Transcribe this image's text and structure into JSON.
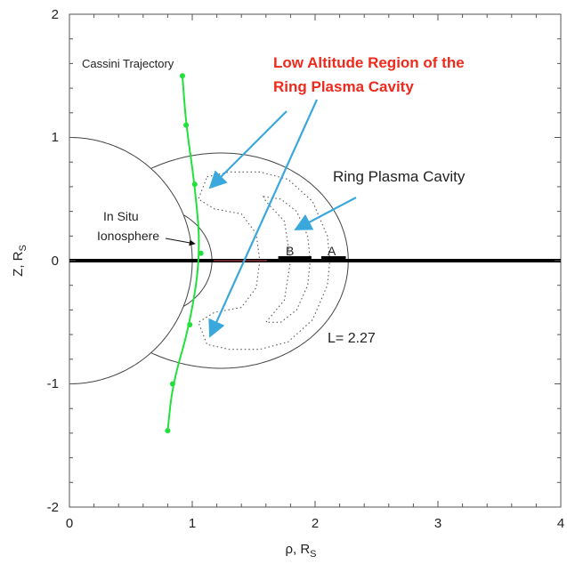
{
  "chart_data": {
    "type": "diagram",
    "xlabel_main": "ρ, R",
    "xlabel_sub": "S",
    "ylabel_main": "Z, R",
    "ylabel_sub": "S",
    "xlim": [
      0,
      4
    ],
    "ylim": [
      -2,
      2
    ],
    "x_ticks": [
      "0",
      "1",
      "2",
      "3",
      "4"
    ],
    "y_ticks": [
      "2",
      "1",
      "0",
      "-1",
      "-2"
    ],
    "grid": false,
    "labels": {
      "trajectory": "Cassini Trajectory",
      "low_alt_line1": "Low Altitude Region of the",
      "low_alt_line2": "Ring Plasma Cavity",
      "cavity": "Ring Plasma Cavity",
      "ionosphere_line1": "In Situ",
      "ionosphere_line2": "Ionosphere",
      "ring_b": "B",
      "ring_a": "A",
      "l_shell": "L= 2.27"
    },
    "planet_radius": 1,
    "l_shell_value": 2.27,
    "rings": [
      {
        "name": "B",
        "from": 1.7,
        "to": 1.97
      },
      {
        "name": "A",
        "from": 2.05,
        "to": 2.25
      }
    ],
    "trajectory_points": [
      {
        "x": 0.92,
        "y": 1.5
      },
      {
        "x": 0.95,
        "y": 1.1
      },
      {
        "x": 1.02,
        "y": 0.62
      },
      {
        "x": 1.07,
        "y": 0.06
      },
      {
        "x": 0.98,
        "y": -0.52
      },
      {
        "x": 0.84,
        "y": -1.0
      },
      {
        "x": 0.8,
        "y": -1.38
      }
    ],
    "colors": {
      "trajectory": "#22e03a",
      "arrows": "#3aa8dc",
      "red_text": "#ee2a1c"
    }
  }
}
